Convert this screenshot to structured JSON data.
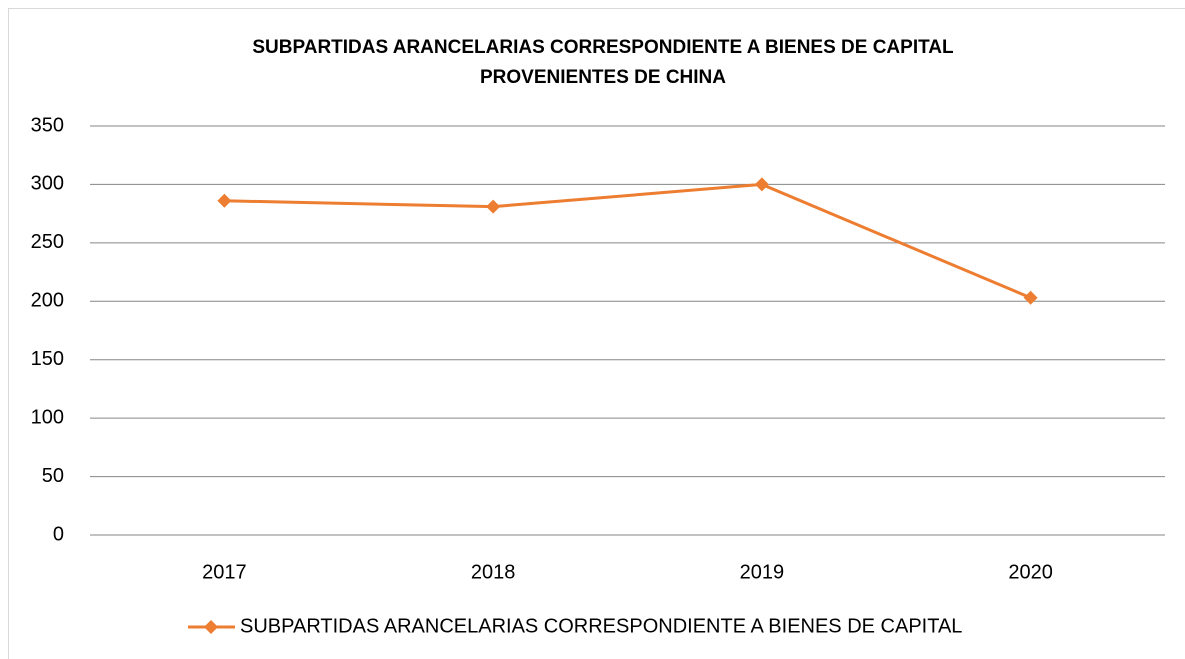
{
  "chart_data": {
    "type": "line",
    "title": [
      "SUBPARTIDAS ARANCELARIAS CORRESPONDIENTE A BIENES DE CAPITAL",
      "PROVENIENTES DE CHINA"
    ],
    "categories": [
      "2017",
      "2018",
      "2019",
      "2020"
    ],
    "series": [
      {
        "name": "SUBPARTIDAS ARANCELARIAS CORRESPONDIENTE A BIENES DE CAPITAL",
        "color": "#ed7d31",
        "values": [
          286,
          281,
          300,
          203
        ]
      }
    ],
    "ylim": [
      0,
      350
    ],
    "yticks": [
      0,
      50,
      100,
      150,
      200,
      250,
      300,
      350
    ],
    "grid": true,
    "legend": "bottom"
  }
}
